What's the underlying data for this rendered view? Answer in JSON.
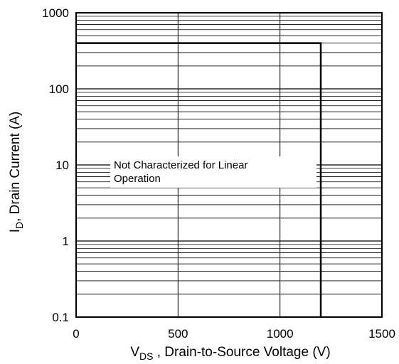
{
  "chart_data": {
    "type": "line",
    "x_scale": "linear",
    "y_scale": "log",
    "xlim": [
      0,
      1500
    ],
    "ylim": [
      0.1,
      1000
    ],
    "x_ticks": [
      "0",
      "500",
      "1000",
      "1500"
    ],
    "y_ticks": [
      "0.1",
      "1",
      "10",
      "100",
      "1000"
    ],
    "grid": true,
    "xlabel": {
      "main": "V",
      "sub": "DS",
      "rest": " , Drain-to-Source Voltage (V)"
    },
    "ylabel": {
      "main": "I",
      "sub": "D",
      "rest": ", Drain Current (A)"
    },
    "annotation": [
      "Not Characterized for Linear",
      "Operation"
    ],
    "series": [
      {
        "x": [
          0,
          1200,
          1200
        ],
        "y": [
          400,
          400,
          0.1
        ]
      }
    ]
  }
}
